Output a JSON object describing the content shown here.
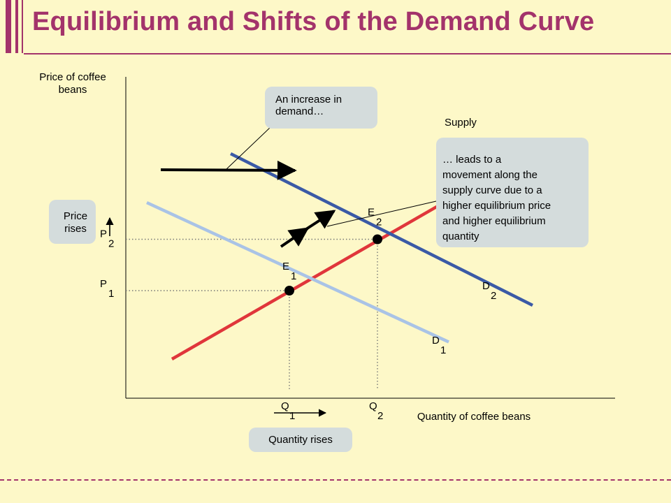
{
  "title": "Equilibrium and Shifts of the Demand Curve",
  "colors": {
    "title": "#a3336b",
    "background": "#fdf8c8",
    "supply": "#e0363b",
    "demand1": "#a9c3e6",
    "demand2": "#3b5aa6",
    "callout_bg": "#d4dcdc"
  },
  "chart_data": {
    "type": "line",
    "xlabel": "Quantity of coffee beans",
    "ylabel": "Price of coffee beans",
    "series": [
      {
        "name": "Supply",
        "x": [
          1.1,
          8.8
        ],
        "y": [
          1.6,
          9.2
        ]
      },
      {
        "name": "D1",
        "x": [
          0.5,
          7.7
        ],
        "y": [
          8.0,
          2.3
        ]
      },
      {
        "name": "D2",
        "x": [
          2.5,
          9.7
        ],
        "y": [
          10.0,
          3.8
        ]
      }
    ],
    "equilibria": [
      {
        "label": "E",
        "sub": "1",
        "x": 3.9,
        "y": 4.4
      },
      {
        "label": "E",
        "sub": "2",
        "x": 6.0,
        "y": 6.5
      }
    ],
    "ticks": {
      "p1": {
        "label": "P",
        "sub": "1",
        "value": 4.4
      },
      "p2": {
        "label": "P",
        "sub": "2",
        "value": 6.5
      },
      "q1": {
        "label": "Q",
        "sub": "1",
        "value": 3.9
      },
      "q2": {
        "label": "Q",
        "sub": "2",
        "value": 6.0
      }
    },
    "curve_labels": {
      "supply": "Supply",
      "d1": {
        "label": "D",
        "sub": "1"
      },
      "d2": {
        "label": "D",
        "sub": "2"
      }
    },
    "annotations": {
      "demand_increase": [
        "An increase in",
        "demand…"
      ],
      "movement": [
        "… leads to a",
        "movement along the",
        "supply curve due to a",
        "higher equilibrium price",
        "and higher equilibrium",
        "quantity"
      ],
      "price_rises": [
        "Price",
        "rises"
      ],
      "quantity_rises": "Quantity rises"
    }
  }
}
